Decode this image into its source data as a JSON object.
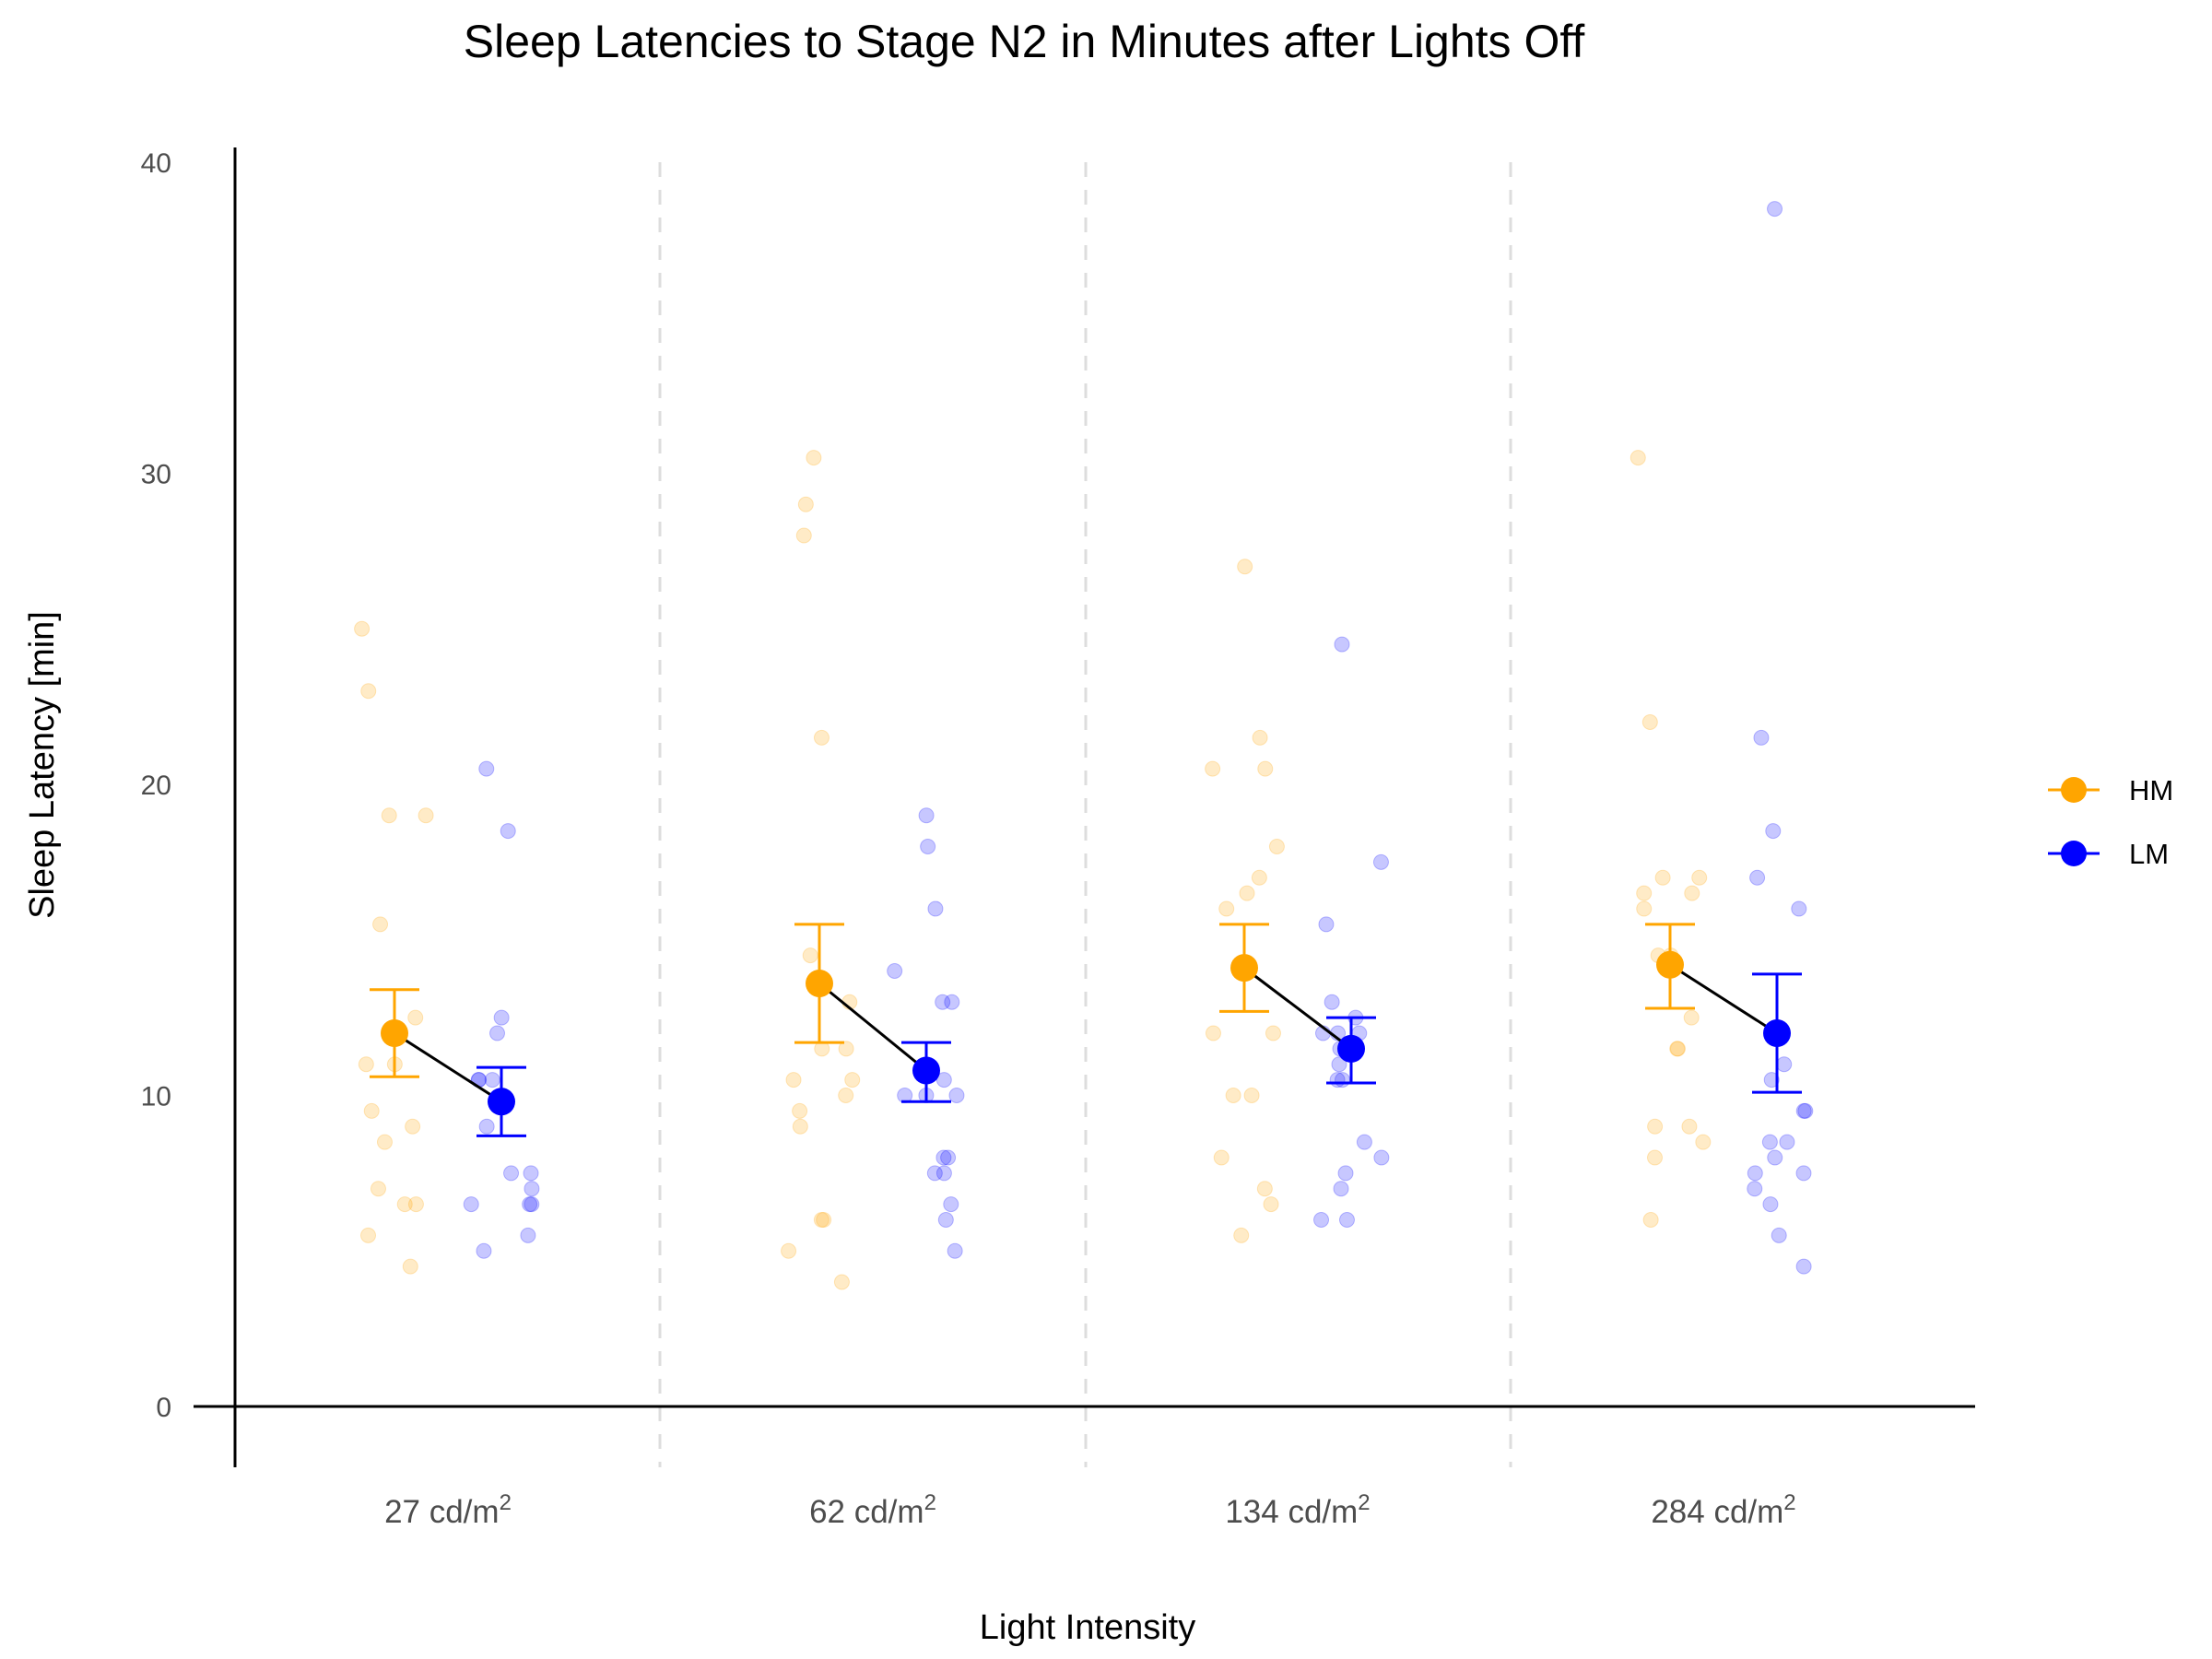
{
  "chart_data": {
    "type": "scatter",
    "title": "Sleep Latencies to Stage N2 in Minutes after Lights Off",
    "xlabel": "Light Intensity",
    "ylabel": "Sleep Latency [min]",
    "ylim": [
      0,
      40
    ],
    "yticks": [
      "0",
      "10",
      "20",
      "30",
      "40"
    ],
    "categories": [
      {
        "base": "27 cd/m",
        "sup": "2"
      },
      {
        "base": "62 cd/m",
        "sup": "2"
      },
      {
        "base": "134 cd/m",
        "sup": "2"
      },
      {
        "base": "284 cd/m",
        "sup": "2"
      }
    ],
    "grid": "vertical dashed separators between categories",
    "legend_position": "right",
    "series": [
      {
        "name": "HM",
        "color": "#FFA500",
        "means": [
          12.0,
          13.6,
          14.1,
          14.2
        ],
        "ci_low": [
          10.6,
          11.7,
          12.7,
          12.8
        ],
        "ci_high": [
          13.4,
          15.5,
          15.5,
          15.5
        ],
        "points": [
          [
            4.5,
            11.0,
            19.0,
            6.5,
            9.5,
            12.5,
            23.0,
            19.0,
            15.5,
            9.0,
            25.0,
            7.0,
            6.5,
            11.0,
            5.5,
            8.5
          ],
          [
            6.0,
            14.5,
            29.0,
            11.5,
            10.5,
            5.0,
            11.5,
            9.5,
            30.5,
            10.5,
            9.0,
            6.0,
            13.0,
            10.0,
            28.0,
            21.5,
            4.0
          ],
          [
            5.5,
            10.0,
            6.5,
            12.0,
            7.0,
            20.5,
            16.5,
            16.0,
            27.0,
            20.5,
            17.0,
            18.0,
            14.0,
            21.5,
            8.0,
            10.0,
            12.0
          ],
          [
            9.0,
            17.0,
            11.5,
            16.5,
            22.0,
            12.5,
            9.0,
            30.5,
            16.0,
            8.0,
            16.5,
            6.0,
            17.0,
            11.5,
            14.5,
            14.5,
            8.5
          ]
        ]
      },
      {
        "name": "LM",
        "color": "#0000FF",
        "means": [
          9.8,
          10.8,
          11.5,
          12.0
        ],
        "ci_low": [
          8.7,
          9.8,
          10.4,
          10.1
        ],
        "ci_high": [
          10.9,
          11.7,
          12.5,
          13.9
        ],
        "points": [
          [
            12.0,
            5.0,
            10.5,
            7.5,
            7.0,
            20.5,
            18.5,
            10.5,
            6.5,
            5.5,
            6.5,
            6.5,
            10.0,
            12.5,
            10.5,
            9.0,
            7.5
          ],
          [
            16.0,
            14.0,
            6.0,
            8.0,
            5.0,
            8.0,
            10.0,
            10.5,
            19.0,
            13.0,
            7.5,
            18.0,
            10.0,
            13.0,
            7.5,
            6.5,
            10.0
          ],
          [
            17.5,
            12.0,
            24.5,
            12.0,
            6.0,
            6.0,
            8.5,
            11.0,
            12.5,
            11.5,
            15.5,
            7.0,
            10.5,
            7.5,
            10.5,
            12.0,
            8.0,
            13.0
          ],
          [
            8.5,
            6.5,
            9.5,
            8.0,
            10.5,
            7.5,
            9.5,
            21.5,
            4.5,
            5.5,
            7.0,
            18.5,
            8.5,
            11.0,
            17.0,
            16.0,
            7.5,
            38.5
          ]
        ]
      }
    ]
  }
}
